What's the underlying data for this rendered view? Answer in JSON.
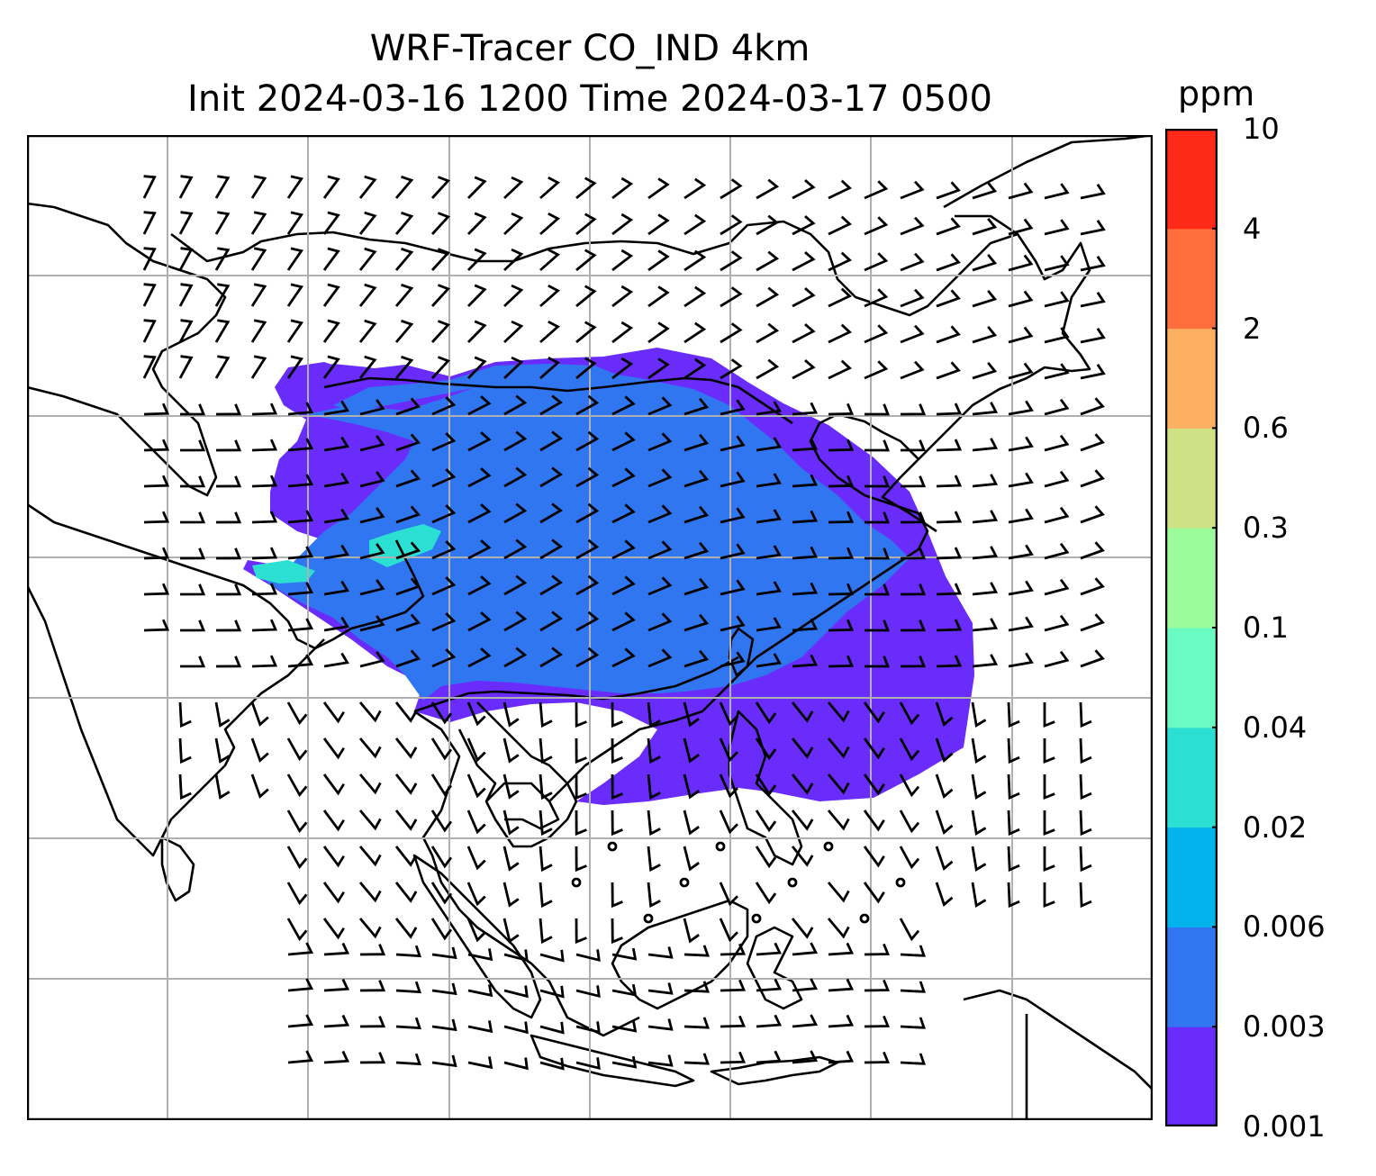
{
  "title": {
    "line1": "WRF-Tracer CO_IND 4km",
    "line2": "Init 2024-03-16 1200 Time 2024-03-17 0500"
  },
  "colorbar": {
    "unit": "ppm",
    "levels": [
      "0.001",
      "0.003",
      "0.006",
      "0.02",
      "0.04",
      "0.1",
      "0.3",
      "0.6",
      "2",
      "4",
      "10"
    ],
    "colors": [
      "#6a2cfa",
      "#3176f1",
      "#03b3eb",
      "#2bdfd3",
      "#69fbc1",
      "#9cfb9b",
      "#cee185",
      "#fdb062",
      "#fe6d3c",
      "#ff2918"
    ]
  },
  "map": {
    "land_line_color": "#000000",
    "grid_color": "#b0b0b0",
    "plume_colors": {
      "low": "#6a2cfa",
      "mid": "#3176f1",
      "high": "#2bdfd3"
    },
    "wind_barbs": "black"
  }
}
